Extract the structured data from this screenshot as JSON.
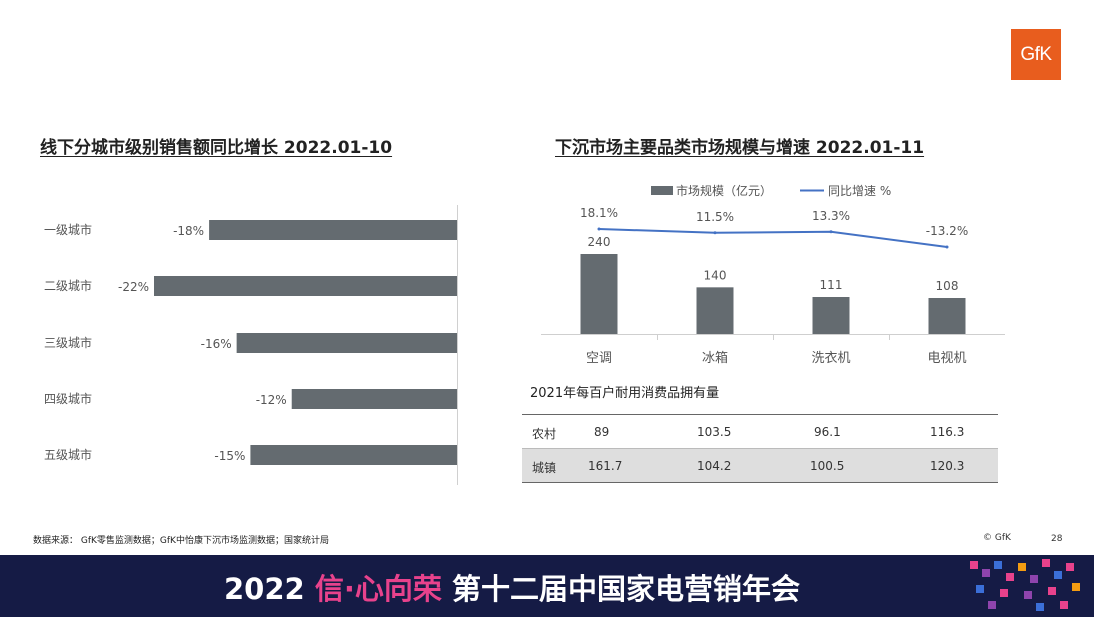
{
  "logo": {
    "text": "GfK"
  },
  "left_title": "线下分城市级别销售额同比增长 2022.01-10",
  "right_title": "下沉市场主要品类市场规模与增速 2022.01-11",
  "chart_data": [
    {
      "type": "bar",
      "orientation": "horizontal",
      "title": "线下分城市级别销售额同比增长 2022.01-10",
      "categories": [
        "一级城市",
        "二级城市",
        "三级城市",
        "四级城市",
        "五级城市"
      ],
      "values": [
        -18,
        -22,
        -16,
        -12,
        -15
      ],
      "labels": [
        "-18%",
        "-22%",
        "-16%",
        "-12%",
        "-15%"
      ],
      "unit": "%",
      "xlim": [
        -22,
        0
      ],
      "grid": false,
      "color": "#646b70"
    },
    {
      "type": "bar",
      "title": "下沉市场主要品类市场规模与增速 2022.01-11",
      "categories": [
        "空调",
        "冰箱",
        "洗衣机",
        "电视机"
      ],
      "legend_position": "top",
      "series": [
        {
          "name": "市场规模（亿元）",
          "type": "bar",
          "values": [
            240,
            140,
            111,
            108
          ],
          "labels": [
            "240",
            "140",
            "111",
            "108"
          ],
          "color": "#646b70"
        },
        {
          "name": "同比增速 %",
          "type": "line",
          "values": [
            18.1,
            11.5,
            13.3,
            -13.2
          ],
          "labels": [
            "18.1%",
            "11.5%",
            "13.3%",
            "-13.2%"
          ],
          "color": "#4472c4"
        }
      ],
      "ylim": [
        0,
        240
      ],
      "grid": false
    }
  ],
  "table": {
    "title": "2021年每百户耐用消费品拥有量",
    "rows": [
      {
        "label": "农村",
        "values": [
          "89",
          "103.5",
          "96.1",
          "116.3"
        ]
      },
      {
        "label": "城镇",
        "values": [
          "161.7",
          "104.2",
          "100.5",
          "120.3"
        ]
      }
    ]
  },
  "footer": {
    "source": "数据来源： GfK零售监测数据；GfK中怡康下沉市场监测数据；国家统计局",
    "copyright": "© GfK",
    "page": "28"
  },
  "banner": {
    "year": "2022 ",
    "slogan": "信·心向荣",
    "event": " 第十二届中国家电营销年会"
  }
}
